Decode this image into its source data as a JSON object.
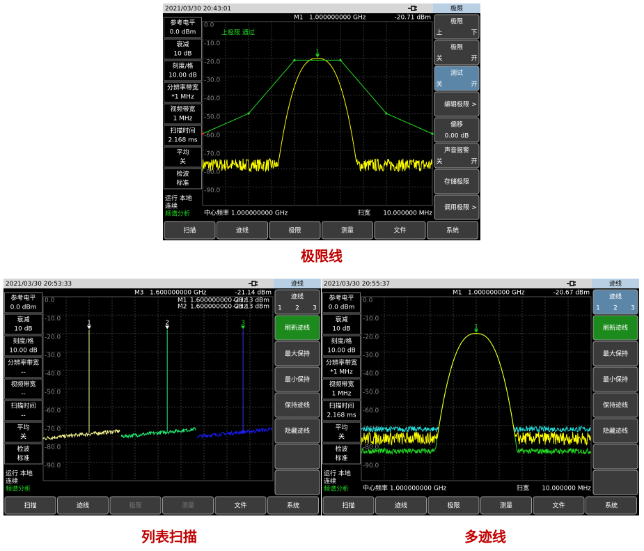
{
  "screens": [
    {
      "caption": "极限线",
      "status": {
        "datetime": "2021/03/30  20:43:01"
      },
      "marker": {
        "label": "M1",
        "freq": "1.000000000 GHz",
        "level": "-20.71 dBm"
      },
      "params": [
        [
          "参考电平",
          "0.0 dBm"
        ],
        [
          "衰减",
          "10 dB"
        ],
        [
          "刻度/格",
          "10.00 dB"
        ],
        [
          "分辨率带宽",
          "*1 MHz"
        ],
        [
          "视频带宽",
          "1 MHz"
        ],
        [
          "扫描时间",
          "2.168 ms"
        ],
        [
          "平均",
          "关"
        ],
        [
          "检波",
          "标准"
        ]
      ],
      "state": [
        "运行  本地",
        "连续",
        "频谱分析"
      ],
      "graph": {
        "ylabels": [
          "0.0",
          "-10.0",
          "-20.0",
          "-30.0",
          "-40.0",
          "-50.0",
          "-60.0",
          "-70.0",
          "-80.0",
          "-90.0"
        ],
        "annotation": "上极限 通过",
        "markers": [
          "1"
        ],
        "center": "中心频率   1.000000000 GHz",
        "span": "扫宽",
        "span_value": "10.000000 MHz"
      },
      "menu": {
        "title": "极限",
        "keys": [
          {
            "label": "极限",
            "options": [
              "上",
              "下"
            ]
          },
          {
            "label": "极限",
            "options": [
              "关",
              "开"
            ]
          },
          {
            "label": "测试",
            "options": [
              "关",
              "开"
            ],
            "highlight": "blue"
          },
          {
            "label": "编辑极限",
            "arrow": ">"
          },
          {
            "label": "偏移",
            "value": "0.00 dB"
          },
          {
            "label": "声音报警",
            "options": [
              "关",
              "开"
            ]
          },
          {
            "label": "存储极限"
          },
          {
            "label": "调用极限",
            "arrow": ">"
          }
        ]
      },
      "bottom": [
        {
          "label": "扫描"
        },
        {
          "label": "迹线"
        },
        {
          "label": "极限"
        },
        {
          "label": "测量"
        },
        {
          "label": "文件"
        },
        {
          "label": "系统"
        }
      ]
    },
    {
      "caption": "列表扫描",
      "status": {
        "datetime": "2021/03/30  20:53:33"
      },
      "marker": {
        "label": "M3",
        "freq": "1.600000000 GHz",
        "level": "-21.14 dBm"
      },
      "marker_table": [
        [
          "M1",
          "1.600000000 GHz",
          "-21.13 dBm"
        ],
        [
          "M2",
          "1.600000000 GHz",
          "-21.13 dBm"
        ]
      ],
      "params": [
        [
          "参考电平",
          "0.0 dBm"
        ],
        [
          "衰减",
          "10 dB"
        ],
        [
          "刻度/格",
          "10.00 dB"
        ],
        [
          "分辨率带宽",
          "--"
        ],
        [
          "视频带宽",
          "--"
        ],
        [
          "扫描时间",
          "--"
        ],
        [
          "平均",
          "关"
        ],
        [
          "检波",
          "标准"
        ]
      ],
      "state": [
        "运行  本地",
        "连续",
        "频谱分析"
      ],
      "graph": {
        "ylabels": [
          "0.0",
          "-10.0",
          "-20.0",
          "-30.0",
          "-40.0",
          "-50.0",
          "-60.0",
          "-70.0",
          "-80.0",
          "-90.0"
        ],
        "markers": [
          "1",
          "2",
          "3"
        ]
      },
      "menu": {
        "title": "迹线",
        "keys": [
          {
            "label": "迹线",
            "options": [
              "1",
              "2",
              "3"
            ]
          },
          {
            "label": "刷新迹线",
            "highlight": "green"
          },
          {
            "label": "最大保持"
          },
          {
            "label": "最小保持"
          },
          {
            "label": "保持迹线"
          },
          {
            "label": "隐藏迹线"
          },
          null,
          null
        ]
      },
      "bottom": [
        {
          "label": "扫描"
        },
        {
          "label": "迹线"
        },
        {
          "label": "极限",
          "disabled": true
        },
        {
          "label": "测量",
          "disabled": true
        },
        {
          "label": "文件"
        },
        {
          "label": "系统"
        }
      ]
    },
    {
      "caption": "多迹线",
      "status": {
        "datetime": "2021/03/30  20:55:37"
      },
      "marker": {
        "label": "M1",
        "freq": "1.000000000 GHz",
        "level": "-20.67 dBm"
      },
      "params": [
        [
          "参考电平",
          "0.0 dBm"
        ],
        [
          "衰减",
          "10 dB"
        ],
        [
          "刻度/格",
          "10.00 dB"
        ],
        [
          "分辨率带宽",
          "*1 MHz"
        ],
        [
          "视频带宽",
          "1 MHz"
        ],
        [
          "扫描时间",
          "2.168 ms"
        ],
        [
          "平均",
          "关"
        ],
        [
          "检波",
          "标准"
        ]
      ],
      "state": [
        "运行  本地",
        "连续",
        "频谱分析"
      ],
      "graph": {
        "ylabels": [
          "0.0",
          "-10.0",
          "-20.0",
          "-30.0",
          "-40.0",
          "-50.0",
          "-60.0",
          "-70.0",
          "-80.0",
          "-90.0"
        ],
        "markers": [
          "1"
        ],
        "center": "中心频率   1.000000000 GHz",
        "span": "扫宽",
        "span_value": "10.000000 MHz"
      },
      "menu": {
        "title": "迹线",
        "keys": [
          {
            "label": "迹线",
            "options": [
              "1",
              "2",
              "3"
            ],
            "highlight": "blue"
          },
          {
            "label": "刷新迹线",
            "highlight": "green"
          },
          {
            "label": "最大保持"
          },
          {
            "label": "最小保持"
          },
          {
            "label": "保持迹线"
          },
          {
            "label": "隐藏迹线"
          },
          null,
          null
        ]
      },
      "bottom": [
        {
          "label": "扫描"
        },
        {
          "label": "迹线"
        },
        {
          "label": "极限"
        },
        {
          "label": "测量"
        },
        {
          "label": "文件"
        },
        {
          "label": "系统"
        }
      ]
    }
  ]
}
